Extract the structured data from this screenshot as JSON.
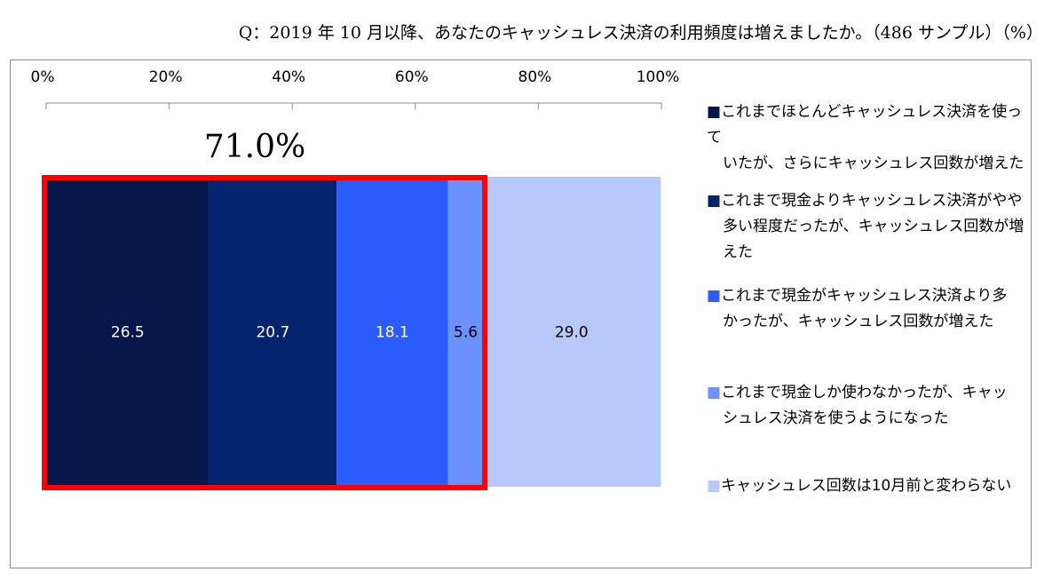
{
  "question": "Q：2019 年 10 月以降、あなたのキャッシュレス決済の利用頻度は増えましたか。（486 サンプル）（%）",
  "chart_data": {
    "type": "bar",
    "orientation": "horizontal-stacked-100",
    "title": "",
    "xlabel": "",
    "ylabel": "",
    "xlim": [
      0,
      100
    ],
    "ticks": [
      "0%",
      "20%",
      "40%",
      "60%",
      "80%",
      "100%"
    ],
    "grid": false,
    "legend_position": "right",
    "annotation": "71.0%",
    "highlight": {
      "from": 0,
      "to": 71.0,
      "color": "#ff0000"
    },
    "series": [
      {
        "name": "これまでほとんどキャッシュレス決済を使っていたが、さらにキャッシュレス回数が増えた",
        "value": 26.5,
        "label": "26.5",
        "color": "#04164a",
        "label_color": "#ffffff"
      },
      {
        "name": "これまで現金よりキャッシュレス決済がやや多い程度だったが、キャッシュレス回数が増えた",
        "value": 20.7,
        "label": "20.7",
        "color": "#04236e",
        "label_color": "#ffffff"
      },
      {
        "name": "これまで現金がキャッシュレス決済より多かったが、キャッシュレス回数が増えた",
        "value": 18.1,
        "label": "18.1",
        "color": "#2a5cff",
        "label_color": "#ffffff"
      },
      {
        "name": "これまで現金しか使わなかったが、キャッシュレス決済を使うようになった",
        "value": 5.6,
        "label": "5.6",
        "color": "#6b91ff",
        "label_color": "#000000"
      },
      {
        "name": "キャッシュレス回数は10月前と変わらない",
        "value": 29.0,
        "label": "29.0",
        "color": "#b7c9fb",
        "label_color": "#000000"
      }
    ]
  },
  "legend": {
    "items": [
      {
        "lines": [
          "■これまでほとんどキャッシュレス決済を使って",
          "いたが、さらにキャッシュレス回数が増えた"
        ]
      },
      {
        "lines": [
          "■これまで現金よりキャッシュレス決済がやや",
          "多い程度だったが、キャッシュレス回数が増",
          "えた"
        ]
      },
      {
        "lines": [
          "■これまで現金がキャッシュレス決済より多",
          "かったが、キャッシュレス回数が増えた"
        ]
      },
      {
        "lines": [
          "■これまで現金しか使わなかったが、キャッ",
          "シュレス決済を使うようになった"
        ]
      },
      {
        "lines": [
          "■キャッシュレス回数は10月前と変わらない"
        ]
      }
    ]
  }
}
